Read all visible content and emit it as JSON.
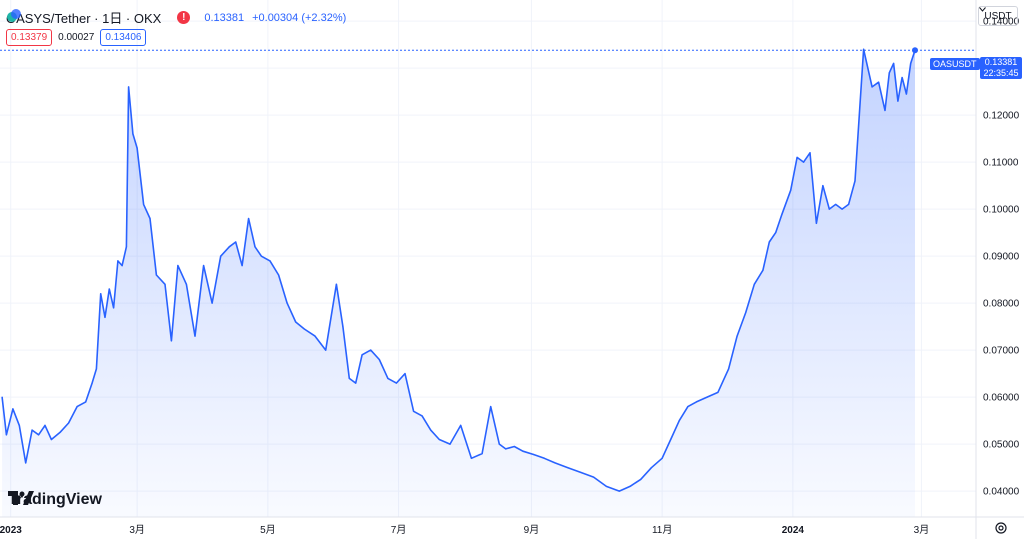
{
  "header": {
    "symbol": "OASYS/Tether · 1日 · OKX",
    "price": "0.13381",
    "change": "+0.00304 (+2.32%)",
    "bid": "0.13379",
    "spread": "0.00027",
    "ask": "0.13406",
    "alert_icon": "exclamation-icon"
  },
  "price_scale": {
    "currency": "USDT",
    "current_symbol_tag": "OASUSDT",
    "current_price": "0.13381",
    "countdown": "22:35:45"
  },
  "branding": {
    "logo_text": "TradingView"
  },
  "colors": {
    "line": "#2962ff",
    "accent": "#2962ff",
    "negative": "#f23645",
    "text": "#131722",
    "grid": "#f0f3fa"
  },
  "chart_data": {
    "type": "area",
    "title": "",
    "xlabel": "",
    "ylabel": "",
    "x_tick_labels": [
      "2023",
      "3月",
      "5月",
      "7月",
      "9月",
      "11月",
      "2024",
      "3月"
    ],
    "y_tick_labels": [
      "0.04000",
      "0.05000",
      "0.06000",
      "0.07000",
      "0.08000",
      "0.09000",
      "0.10000",
      "0.11000",
      "0.12000",
      "0.13000",
      "0.14000"
    ],
    "ylim": [
      0.0345,
      0.1445
    ],
    "xlim": [
      "2022-12-27",
      "2024-03-26"
    ],
    "grid": true,
    "series": [
      {
        "x": [
          "2022-12-28",
          "2022-12-30",
          "2023-01-02",
          "2023-01-05",
          "2023-01-08",
          "2023-01-11",
          "2023-01-14",
          "2023-01-17",
          "2023-01-20",
          "2023-01-24",
          "2023-01-28",
          "2023-02-01",
          "2023-02-05",
          "2023-02-08",
          "2023-02-10",
          "2023-02-12",
          "2023-02-14",
          "2023-02-16",
          "2023-02-18",
          "2023-02-20",
          "2023-02-22",
          "2023-02-24",
          "2023-02-25",
          "2023-02-27",
          "2023-03-01",
          "2023-03-04",
          "2023-03-07",
          "2023-03-10",
          "2023-03-14",
          "2023-03-17",
          "2023-03-20",
          "2023-03-24",
          "2023-03-28",
          "2023-04-01",
          "2023-04-05",
          "2023-04-09",
          "2023-04-13",
          "2023-04-16",
          "2023-04-19",
          "2023-04-22",
          "2023-04-25",
          "2023-04-28",
          "2023-05-02",
          "2023-05-06",
          "2023-05-10",
          "2023-05-14",
          "2023-05-18",
          "2023-05-23",
          "2023-05-28",
          "2023-06-02",
          "2023-06-05",
          "2023-06-08",
          "2023-06-11",
          "2023-06-14",
          "2023-06-18",
          "2023-06-22",
          "2023-06-26",
          "2023-06-30",
          "2023-07-04",
          "2023-07-08",
          "2023-07-12",
          "2023-07-16",
          "2023-07-20",
          "2023-07-25",
          "2023-07-30",
          "2023-08-04",
          "2023-08-09",
          "2023-08-13",
          "2023-08-17",
          "2023-08-20",
          "2023-08-24",
          "2023-08-28",
          "2023-09-02",
          "2023-09-07",
          "2023-09-12",
          "2023-09-18",
          "2023-09-24",
          "2023-09-30",
          "2023-10-06",
          "2023-10-12",
          "2023-10-17",
          "2023-10-22",
          "2023-10-27",
          "2023-11-01",
          "2023-11-05",
          "2023-11-09",
          "2023-11-13",
          "2023-11-17",
          "2023-11-22",
          "2023-11-27",
          "2023-12-02",
          "2023-12-06",
          "2023-12-10",
          "2023-12-14",
          "2023-12-18",
          "2023-12-21",
          "2023-12-24",
          "2023-12-27",
          "2023-12-31",
          "2024-01-03",
          "2024-01-06",
          "2024-01-09",
          "2024-01-12",
          "2024-01-15",
          "2024-01-18",
          "2024-01-21",
          "2024-01-24",
          "2024-01-27",
          "2024-01-30",
          "2024-02-03",
          "2024-02-07",
          "2024-02-10",
          "2024-02-13",
          "2024-02-15",
          "2024-02-17",
          "2024-02-19",
          "2024-02-21",
          "2024-02-23",
          "2024-02-25",
          "2024-02-27"
        ],
        "values": [
          0.06,
          0.052,
          0.0575,
          0.054,
          0.046,
          0.053,
          0.052,
          0.054,
          0.051,
          0.0525,
          0.0545,
          0.058,
          0.059,
          0.063,
          0.066,
          0.082,
          0.077,
          0.083,
          0.079,
          0.089,
          0.088,
          0.092,
          0.126,
          0.116,
          0.113,
          0.101,
          0.098,
          0.086,
          0.084,
          0.072,
          0.088,
          0.084,
          0.073,
          0.088,
          0.08,
          0.09,
          0.092,
          0.093,
          0.088,
          0.098,
          0.092,
          0.09,
          0.089,
          0.086,
          0.08,
          0.076,
          0.0745,
          0.073,
          0.07,
          0.084,
          0.075,
          0.064,
          0.063,
          0.069,
          0.07,
          0.068,
          0.064,
          0.063,
          0.065,
          0.057,
          0.056,
          0.053,
          0.051,
          0.05,
          0.054,
          0.047,
          0.048,
          0.058,
          0.05,
          0.049,
          0.0495,
          0.0485,
          0.0478,
          0.047,
          0.046,
          0.045,
          0.044,
          0.043,
          0.041,
          0.04,
          0.041,
          0.0425,
          0.045,
          0.047,
          0.051,
          0.055,
          0.058,
          0.059,
          0.06,
          0.061,
          0.066,
          0.073,
          0.078,
          0.084,
          0.087,
          0.093,
          0.095,
          0.099,
          0.104,
          0.111,
          0.11,
          0.112,
          0.097,
          0.105,
          0.1,
          0.101,
          0.1,
          0.101,
          0.106,
          0.134,
          0.126,
          0.127,
          0.121,
          0.129,
          0.131,
          0.123,
          0.128,
          0.1245,
          0.131,
          0.13381
        ]
      }
    ]
  }
}
